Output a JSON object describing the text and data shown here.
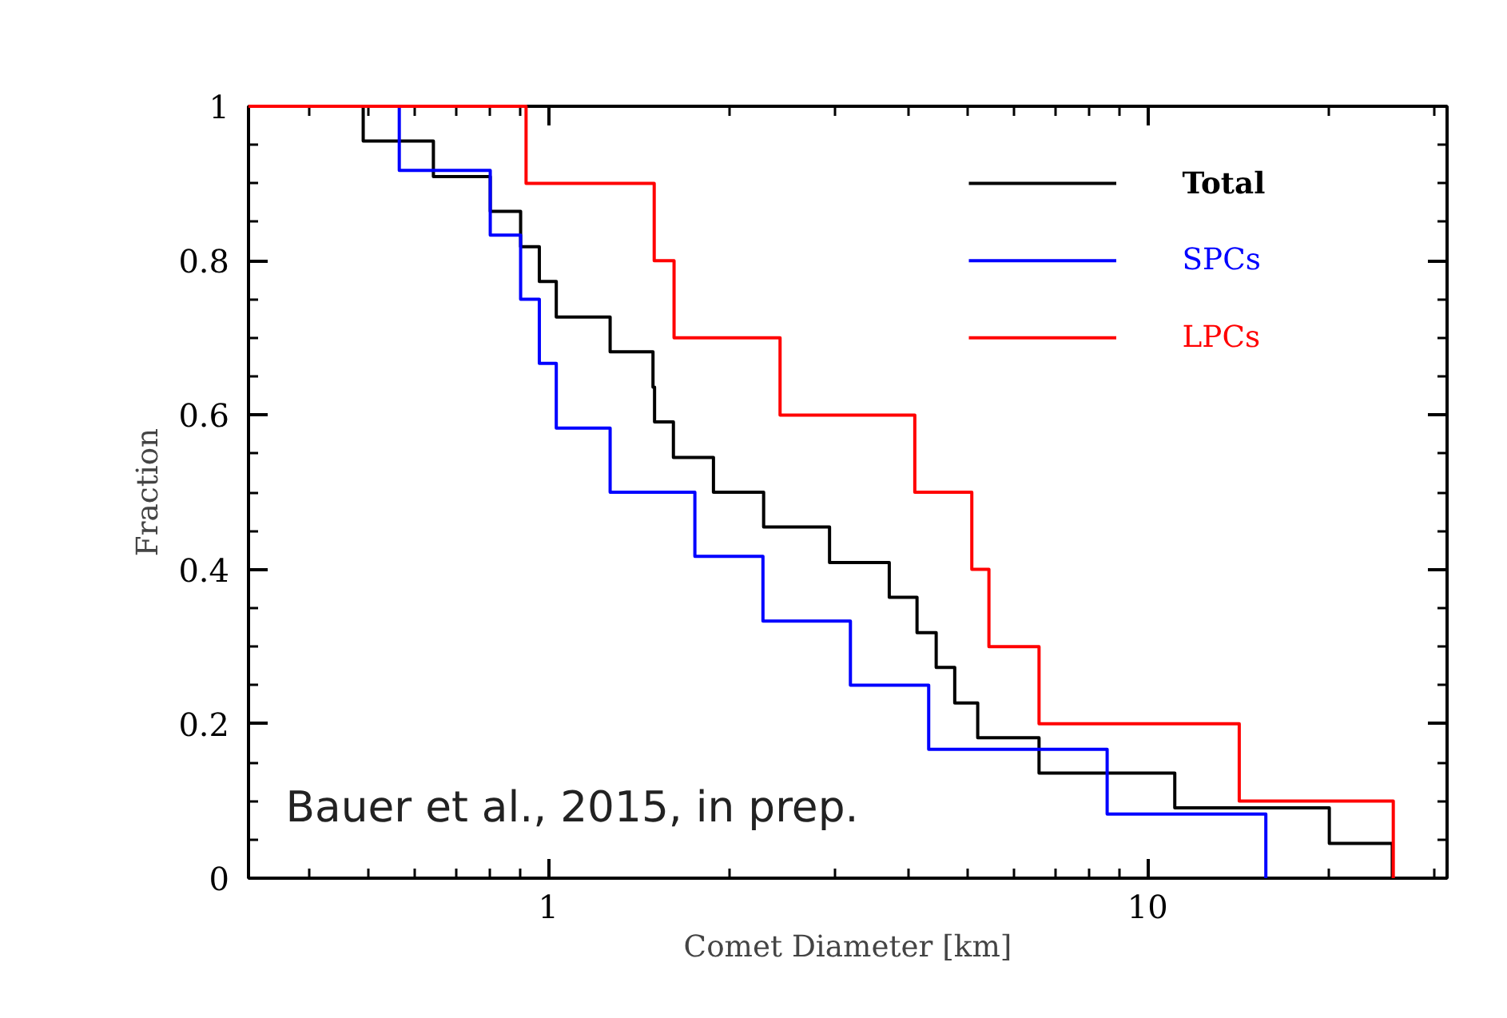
{
  "chart_data": {
    "type": "step",
    "xlabel": "Comet Diameter [km]",
    "ylabel": "Fraction",
    "log": "x",
    "xlim": [
      0.316,
      31.6
    ],
    "xticks": [
      1,
      10
    ],
    "ylim": [
      0,
      1
    ],
    "yticks": [
      0,
      0.2,
      0.4,
      0.6,
      0.8,
      1
    ],
    "grid": false,
    "legend": "top right",
    "line_style": "solid",
    "marker": "none",
    "annotations": [
      "Bauer et al., 2015, in prep."
    ],
    "series": [
      {
        "name": "Total",
        "color": "#000000",
        "x": [
          0.316,
          0.491,
          0.643,
          0.8,
          0.899,
          0.966,
          1.031,
          1.268,
          1.495,
          1.504,
          1.617,
          1.886,
          2.287,
          2.946,
          3.706,
          4.123,
          4.438,
          4.766,
          5.206,
          6.589,
          11.1,
          20.1,
          25.6
        ],
        "values": [
          1,
          0.955,
          0.909,
          0.864,
          0.818,
          0.773,
          0.727,
          0.682,
          0.636,
          0.591,
          0.545,
          0.5,
          0.455,
          0.409,
          0.364,
          0.318,
          0.273,
          0.227,
          0.182,
          0.136,
          0.091,
          0.045,
          0
        ]
      },
      {
        "name": "SPCs",
        "color": "#0000ff",
        "x": [
          0.316,
          0.564,
          0.8,
          0.899,
          0.966,
          1.031,
          1.268,
          1.756,
          2.281,
          3.192,
          4.312,
          8.56,
          15.75
        ],
        "values": [
          1,
          0.917,
          0.833,
          0.75,
          0.667,
          0.583,
          0.5,
          0.417,
          0.333,
          0.25,
          0.167,
          0.083,
          0
        ]
      },
      {
        "name": "LPCs",
        "color": "#ff0000",
        "x": [
          0.316,
          0.918,
          1.502,
          1.621,
          2.436,
          4.088,
          5.089,
          5.435,
          6.589,
          14.22,
          25.7
        ],
        "values": [
          1,
          0.9,
          0.8,
          0.7,
          0.6,
          0.5,
          0.4,
          0.3,
          0.2,
          0.1,
          0
        ]
      }
    ]
  }
}
